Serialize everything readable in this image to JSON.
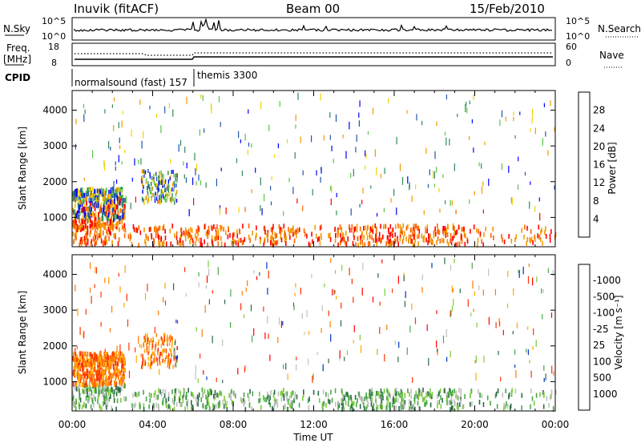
{
  "header": {
    "station": "Inuvik (fitACF)",
    "beam": "Beam 00",
    "date": "15/Feb/2010"
  },
  "top_panels": {
    "nsky_label": "N.Sky",
    "nsky_ticks": [
      "10^5",
      "10^0"
    ],
    "nsearch_label": "N.Search",
    "nsearch_ticks": [
      "10^5",
      "10^0"
    ],
    "freq_label_1": "Freq.",
    "freq_label_2": "[MHz]",
    "freq_ticks": [
      "18",
      "8"
    ],
    "nave_label": "Nave",
    "nave_ticks": [
      "60",
      "0"
    ],
    "cpid_label": "CPID",
    "cpid_1": "normalsound (fast) 157",
    "cpid_2": "themis 3300"
  },
  "chart_data": [
    {
      "type": "heatmap",
      "title": "",
      "xlabel": "Time UT",
      "ylabel": "Slant Range [km]",
      "x_ticks": [
        "00:00",
        "04:00",
        "08:00",
        "12:00",
        "16:00",
        "20:00",
        "00:00"
      ],
      "y_ticks": [
        1000,
        2000,
        3000,
        4000
      ],
      "xlim": [
        0,
        24
      ],
      "ylim": [
        180,
        4550
      ],
      "colorbar": {
        "label": "Power [dB]",
        "ticks": [
          "4",
          "8",
          "12",
          "16",
          "20",
          "24",
          "28"
        ],
        "colors": [
          "#0000ff",
          "#2255aa",
          "#2e8b57",
          "#5cc24a",
          "#f2d200",
          "#f29a00",
          "#ff6600",
          "#ff0000"
        ]
      },
      "seed": 7
    },
    {
      "type": "heatmap",
      "title": "",
      "xlabel": "Time UT",
      "ylabel": "Slant Range [km]",
      "x_ticks": [
        "00:00",
        "04:00",
        "08:00",
        "12:00",
        "16:00",
        "20:00",
        "00:00"
      ],
      "y_ticks": [
        1000,
        2000,
        3000,
        4000
      ],
      "xlim": [
        0,
        24
      ],
      "ylim": [
        180,
        4550
      ],
      "colorbar": {
        "label": "Velocity [m s⁻¹]",
        "ticks": [
          "1000",
          "500",
          "100",
          "25",
          "-25",
          "-100",
          "-500",
          "-1000"
        ],
        "colors": [
          "#0033cc",
          "#2a6a44",
          "#4aa84a",
          "#7acc3a",
          "#c0c0c0",
          "#ffa500",
          "#ff7a00",
          "#ff3300",
          "#ff0000"
        ]
      },
      "seed": 13
    }
  ],
  "x_axis_title": "Time UT"
}
